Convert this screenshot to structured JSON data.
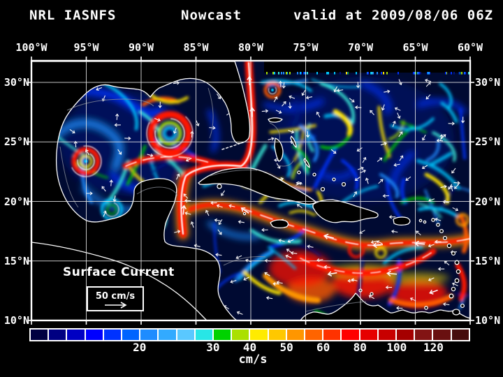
{
  "title": {
    "model": "NRL IASNFS",
    "product": "Nowcast",
    "valid": "valid at 2009/08/06 06Z"
  },
  "axes": {
    "longitude": [
      "100°W",
      "95°W",
      "90°W",
      "85°W",
      "80°W",
      "75°W",
      "70°W",
      "65°W",
      "60°W"
    ],
    "latitude": [
      "30°N",
      "25°N",
      "20°N",
      "15°N",
      "10°N"
    ]
  },
  "legend": {
    "title": "Surface Current",
    "scale_label": "50 cm/s"
  },
  "colorbar": {
    "unit": "cm/s",
    "ticks": [
      {
        "label": "20",
        "boundary": 6
      },
      {
        "label": "30",
        "boundary": 10
      },
      {
        "label": "40",
        "boundary": 12
      },
      {
        "label": "50",
        "boundary": 14
      },
      {
        "label": "60",
        "boundary": 16
      },
      {
        "label": "80",
        "boundary": 18
      },
      {
        "label": "100",
        "boundary": 20
      },
      {
        "label": "120",
        "boundary": 22
      }
    ],
    "colors": [
      "#000041",
      "#000082",
      "#0000c3",
      "#0000ff",
      "#0032ff",
      "#0064ff",
      "#1e8cff",
      "#32aaff",
      "#5ac8ff",
      "#28e6e6",
      "#00d200",
      "#aae000",
      "#ffeb00",
      "#ffc800",
      "#ff9600",
      "#ff6400",
      "#ff3200",
      "#ff0000",
      "#e60000",
      "#c80000",
      "#a50000",
      "#821414",
      "#691010",
      "#460c0c"
    ]
  },
  "map_style": {
    "background": "#000000",
    "ocean": "#000a32",
    "land": "#000000",
    "coastline": "#ffffff",
    "grid": "#e8e8e8",
    "shelf_contour": "#8c929c"
  }
}
